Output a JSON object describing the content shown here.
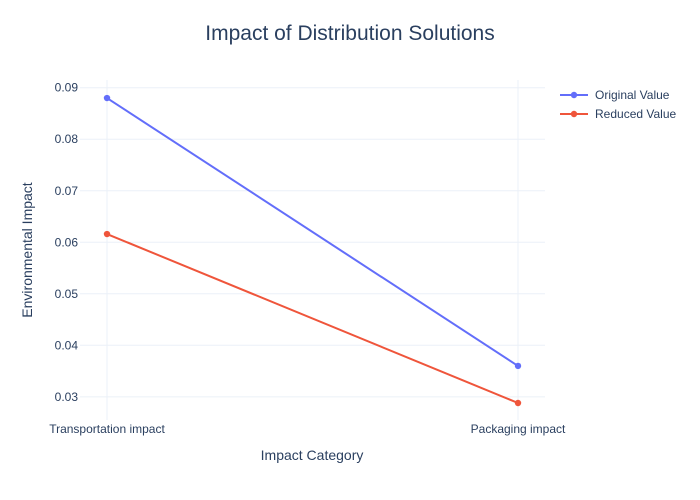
{
  "chart_data": {
    "type": "line",
    "title": "Impact of Distribution Solutions",
    "xlabel": "Impact Category",
    "ylabel": "Environmental Impact",
    "categories": [
      "Transportation impact",
      "Packaging impact"
    ],
    "ylim": [
      0.0255,
      0.0915
    ],
    "yticks": [
      0.03,
      0.04,
      0.05,
      0.06,
      0.07,
      0.08,
      0.09
    ],
    "ytick_labels": [
      "0.03",
      "0.04",
      "0.05",
      "0.06",
      "0.07",
      "0.08",
      "0.09"
    ],
    "grid": true,
    "legend_position": "top-right",
    "series": [
      {
        "name": "Original Value",
        "values": [
          0.088,
          0.036
        ],
        "color": "#636efa"
      },
      {
        "name": "Reduced Value",
        "values": [
          0.0616,
          0.0288
        ],
        "color": "#ef553b"
      }
    ]
  }
}
